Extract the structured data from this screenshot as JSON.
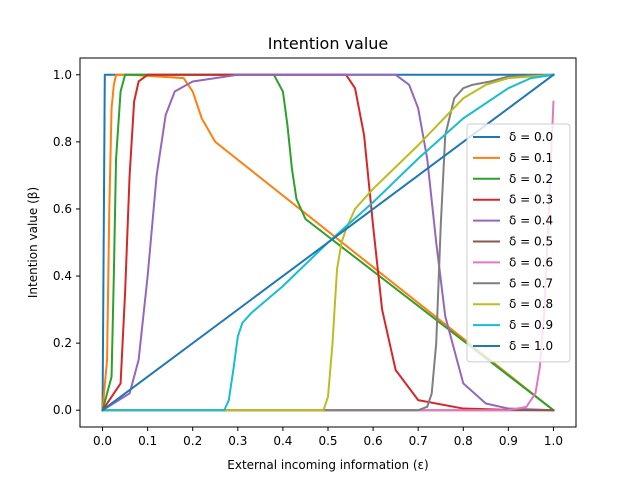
{
  "chart_data": {
    "type": "line",
    "title": "Intention value",
    "xlabel": "External incoming information (ε)",
    "ylabel": "Intention value (β)",
    "xlim": [
      -0.05,
      1.05
    ],
    "ylim": [
      -0.05,
      1.05
    ],
    "xticks": [
      0.0,
      0.1,
      0.2,
      0.3,
      0.4,
      0.5,
      0.6,
      0.7,
      0.8,
      0.9,
      1.0
    ],
    "xtick_labels": [
      "0.0",
      "0.1",
      "0.2",
      "0.3",
      "0.4",
      "0.5",
      "0.6",
      "0.7",
      "0.8",
      "0.9",
      "1.0"
    ],
    "yticks": [
      0.0,
      0.2,
      0.4,
      0.6,
      0.8,
      1.0
    ],
    "ytick_labels": [
      "0.0",
      "0.2",
      "0.4",
      "0.6",
      "0.8",
      "1.0"
    ],
    "grid": false,
    "legend_position": "center-right",
    "series": [
      {
        "name": "δ = 0.0",
        "color": "#1f77b4",
        "x": [
          0,
          0.005,
          0.01,
          1.0
        ],
        "y": [
          0,
          1,
          1,
          1
        ]
      },
      {
        "name": "δ = 0.1",
        "color": "#ff7f0e",
        "x": [
          0,
          0.01,
          0.015,
          0.02,
          0.025,
          0.03,
          0.04,
          0.06,
          0.18,
          0.2,
          0.22,
          0.25,
          1.0
        ],
        "y": [
          0,
          0.15,
          0.6,
          0.9,
          0.97,
          1.0,
          1.0,
          1.0,
          0.99,
          0.95,
          0.87,
          0.8,
          0.0
        ]
      },
      {
        "name": "δ = 0.2",
        "color": "#2ca02c",
        "x": [
          0,
          0.02,
          0.025,
          0.03,
          0.04,
          0.05,
          0.07,
          0.38,
          0.4,
          0.41,
          0.42,
          0.43,
          0.45,
          1.0
        ],
        "y": [
          0,
          0.1,
          0.4,
          0.75,
          0.95,
          1.0,
          1.0,
          1.0,
          0.95,
          0.85,
          0.72,
          0.63,
          0.57,
          0.0
        ]
      },
      {
        "name": "δ = 0.3",
        "color": "#d62728",
        "x": [
          0,
          0.04,
          0.05,
          0.06,
          0.07,
          0.08,
          0.1,
          0.54,
          0.56,
          0.58,
          0.6,
          0.62,
          0.65,
          0.7,
          0.8,
          0.9,
          1.0
        ],
        "y": [
          0,
          0.08,
          0.35,
          0.7,
          0.92,
          0.98,
          1.0,
          1.0,
          0.96,
          0.82,
          0.55,
          0.3,
          0.12,
          0.03,
          0.005,
          0.001,
          0.0
        ]
      },
      {
        "name": "δ = 0.4",
        "color": "#9467bd",
        "x": [
          0,
          0.06,
          0.08,
          0.1,
          0.12,
          0.14,
          0.16,
          0.2,
          0.25,
          0.3,
          0.65,
          0.68,
          0.7,
          0.72,
          0.74,
          0.76,
          0.8,
          0.85,
          0.9,
          1.0
        ],
        "y": [
          0,
          0.05,
          0.15,
          0.4,
          0.7,
          0.88,
          0.95,
          0.98,
          0.99,
          1.0,
          1.0,
          0.97,
          0.9,
          0.75,
          0.5,
          0.28,
          0.08,
          0.02,
          0.005,
          0.0
        ]
      },
      {
        "name": "δ = 0.5",
        "color": "#8c564b",
        "x": [
          0,
          1.0
        ],
        "y": [
          0,
          0
        ]
      },
      {
        "name": "δ = 0.6",
        "color": "#e377c2",
        "x": [
          0,
          0.9,
          0.94,
          0.96,
          0.97,
          0.98,
          0.99,
          1.0
        ],
        "y": [
          0,
          0,
          0.01,
          0.05,
          0.13,
          0.3,
          0.6,
          0.92
        ]
      },
      {
        "name": "δ = 0.7",
        "color": "#7f7f7f",
        "x": [
          0,
          0.7,
          0.72,
          0.73,
          0.74,
          0.75,
          0.76,
          0.78,
          0.8,
          0.82,
          0.86,
          0.9,
          1.0
        ],
        "y": [
          0,
          0,
          0.01,
          0.05,
          0.2,
          0.55,
          0.82,
          0.93,
          0.96,
          0.97,
          0.98,
          0.995,
          1.0
        ]
      },
      {
        "name": "δ = 0.8",
        "color": "#bcbd22",
        "x": [
          0,
          0.49,
          0.5,
          0.51,
          0.52,
          0.53,
          0.54,
          0.56,
          0.6,
          0.7,
          0.8,
          0.85,
          0.9,
          1.0
        ],
        "y": [
          0,
          0,
          0.04,
          0.2,
          0.42,
          0.5,
          0.54,
          0.6,
          0.66,
          0.79,
          0.93,
          0.97,
          0.99,
          1.0
        ]
      },
      {
        "name": "δ = 0.9",
        "color": "#17becf",
        "x": [
          0,
          0.27,
          0.28,
          0.29,
          0.3,
          0.31,
          0.33,
          0.4,
          0.5,
          0.6,
          0.7,
          0.8,
          0.9,
          0.95,
          1.0
        ],
        "y": [
          0,
          0,
          0.03,
          0.12,
          0.22,
          0.26,
          0.29,
          0.37,
          0.5,
          0.62,
          0.75,
          0.87,
          0.96,
          0.99,
          1.0
        ]
      },
      {
        "name": "δ = 1.0",
        "color": "#1f77b4",
        "x": [
          0,
          1.0
        ],
        "y": [
          0,
          1.0
        ]
      }
    ]
  }
}
